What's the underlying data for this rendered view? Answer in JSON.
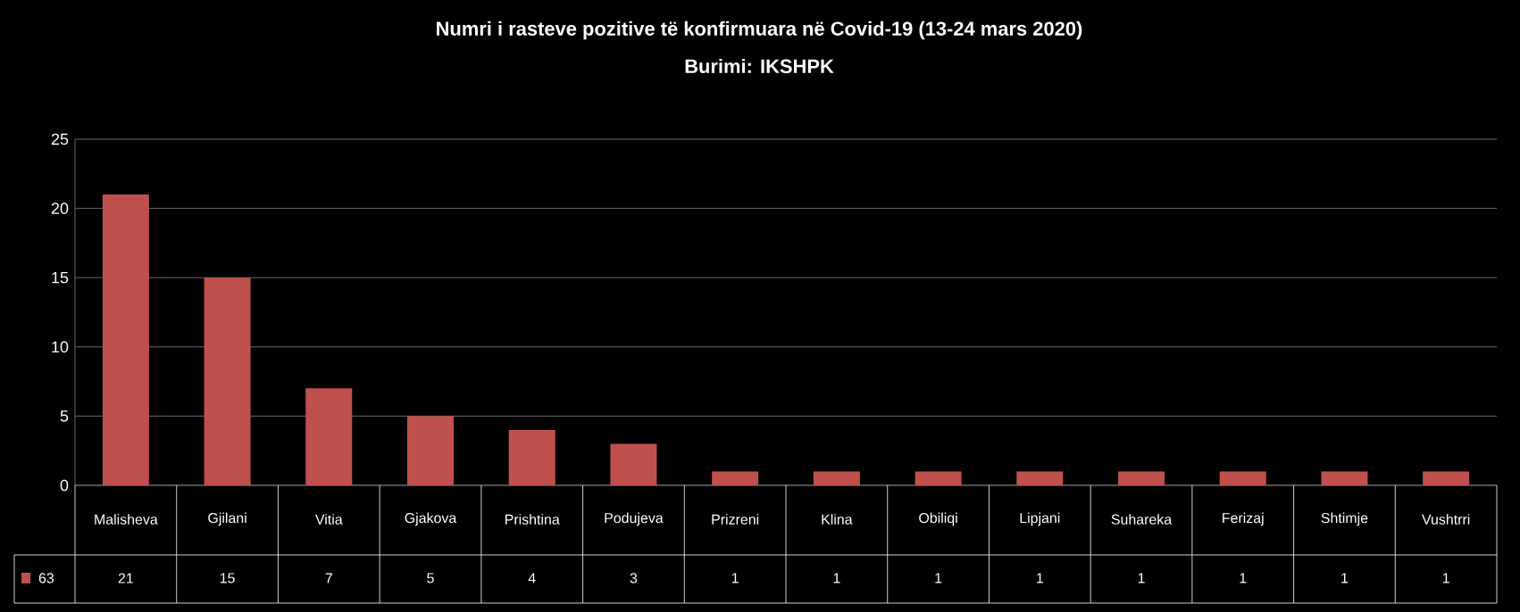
{
  "chart_data": {
    "type": "bar",
    "title": "Numri i rasteve pozitive të konfirmuara  në Covid-19 (13-24 mars 2020)",
    "subtitle": "Burimi: IKSHPK",
    "categories": [
      "Malisheva",
      "Gjilani",
      "Vitia",
      "Gjakova",
      "Prishtina",
      "Podujeva",
      "Prizreni",
      "Klina",
      "Obiliqi",
      "Lipjani",
      "Suhareka",
      "Ferizaj",
      "Shtimje",
      "Vushtrri"
    ],
    "series": [
      {
        "name": "63",
        "color": "#c0504d",
        "values": [
          21,
          15,
          7,
          5,
          4,
          3,
          1,
          1,
          1,
          1,
          1,
          1,
          1,
          1
        ]
      }
    ],
    "ylim": [
      0,
      25
    ],
    "yticks": [
      0,
      5,
      10,
      15,
      20,
      25
    ],
    "grid": "y",
    "data_labels": true,
    "legend": "bottom left"
  }
}
